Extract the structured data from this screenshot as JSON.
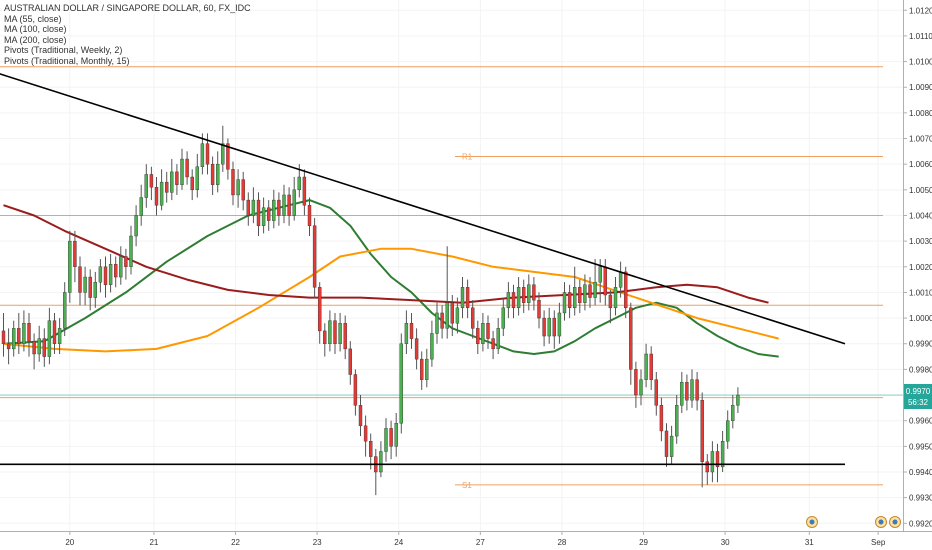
{
  "legend": {
    "title": "AUSTRALIAN DOLLAR / SINGAPORE DOLLAR, 60, FX_IDC",
    "indicators": [
      "MA (55, close)",
      "MA (100, close)",
      "MA (200, close)",
      "Pivots (Traditional, Weekly, 2)",
      "Pivots (Traditional, Monthly, 15)"
    ]
  },
  "price_tag": {
    "price": "0.9970",
    "countdown": "56:32"
  },
  "pivot_labels": {
    "r1": "R1",
    "s1": "S1"
  },
  "colors": {
    "up": "#4caf50",
    "down": "#e53935",
    "ma55": "#2e7d32",
    "ma100": "#ff9800",
    "ma200": "#9b1c1c",
    "pivot": "#f0a060",
    "trend": "#000000",
    "price_tag": "#26a69a"
  },
  "chart_data": {
    "type": "candlestick",
    "title": "AUSTRALIAN DOLLAR / SINGAPORE DOLLAR, 60, FX_IDC",
    "x_tick_labels": [
      "20",
      "21",
      "22",
      "23",
      "24",
      "27",
      "28",
      "29",
      "30",
      "31",
      "Sep"
    ],
    "y_tick_labels": [
      "1.0120",
      "1.0110",
      "1.0100",
      "1.0090",
      "1.0080",
      "1.0070",
      "1.0060",
      "1.0050",
      "1.0040",
      "1.0030",
      "1.0020",
      "1.0010",
      "1.0000",
      "0.9990",
      "0.9980",
      "0.9970",
      "0.9960",
      "0.9950",
      "0.9940",
      "0.9930",
      "0.9920"
    ],
    "ylim": [
      0.9917,
      1.0124
    ],
    "current_price": 0.997,
    "candles": [
      [
        0.9995,
        0.999,
        1.0002,
        0.9985
      ],
      [
        0.999,
        0.9988,
        0.9996,
        0.9982
      ],
      [
        0.9988,
        0.9996,
        0.9999,
        0.9985
      ],
      [
        0.9996,
        0.999,
        1.0002,
        0.9986
      ],
      [
        0.999,
        0.9998,
        1.0003,
        0.9987
      ],
      [
        0.9998,
        0.9991,
        1.0002,
        0.9985
      ],
      [
        0.9991,
        0.9986,
        0.9994,
        0.998
      ],
      [
        0.9986,
        0.9992,
        0.9997,
        0.9983
      ],
      [
        0.9992,
        0.9985,
        0.9996,
        0.9981
      ],
      [
        0.9985,
        0.9999,
        1.0004,
        0.9982
      ],
      [
        0.9999,
        0.999,
        1.0002,
        0.9986
      ],
      [
        0.999,
        0.9996,
        1.0,
        0.9986
      ],
      [
        0.9996,
        1.001,
        1.0014,
        0.9993
      ],
      [
        1.001,
        1.003,
        1.0034,
        1.0006
      ],
      [
        1.003,
        1.002,
        1.0034,
        1.0014
      ],
      [
        1.002,
        1.001,
        1.0024,
        1.0005
      ],
      [
        1.001,
        1.0016,
        1.002,
        1.0005
      ],
      [
        1.0016,
        1.0008,
        1.0019,
        1.0003
      ],
      [
        1.0008,
        1.0014,
        1.0018,
        1.0004
      ],
      [
        1.0014,
        1.002,
        1.0023,
        1.001
      ],
      [
        1.002,
        1.0013,
        1.0024,
        1.0008
      ],
      [
        1.0013,
        1.0021,
        1.0025,
        1.001
      ],
      [
        1.0021,
        1.0016,
        1.0024,
        1.0012
      ],
      [
        1.0016,
        1.0024,
        1.0028,
        1.0013
      ],
      [
        1.0024,
        1.002,
        1.0027,
        1.0015
      ],
      [
        1.002,
        1.0032,
        1.0036,
        1.0017
      ],
      [
        1.0032,
        1.004,
        1.0044,
        1.0028
      ],
      [
        1.004,
        1.0047,
        1.0052,
        1.0036
      ],
      [
        1.0047,
        1.0056,
        1.006,
        1.0043
      ],
      [
        1.0056,
        1.0051,
        1.0059,
        1.0046
      ],
      [
        1.0051,
        1.0044,
        1.0055,
        1.004
      ],
      [
        1.0044,
        1.0053,
        1.0058,
        1.0042
      ],
      [
        1.0053,
        1.0049,
        1.0057,
        1.0045
      ],
      [
        1.0049,
        1.0057,
        1.0062,
        1.0046
      ],
      [
        1.0057,
        1.0052,
        1.006,
        1.0048
      ],
      [
        1.0052,
        1.0062,
        1.0066,
        1.005
      ],
      [
        1.0062,
        1.0055,
        1.0065,
        1.0052
      ],
      [
        1.0055,
        1.005,
        1.0058,
        1.0046
      ],
      [
        1.005,
        1.0059,
        1.0064,
        1.0047
      ],
      [
        1.0059,
        1.0068,
        1.0072,
        1.0056
      ],
      [
        1.0068,
        1.006,
        1.0072,
        1.0056
      ],
      [
        1.006,
        1.0052,
        1.0063,
        1.0048
      ],
      [
        1.0052,
        1.006,
        1.0065,
        1.0049
      ],
      [
        1.006,
        1.0068,
        1.0075,
        1.0057
      ],
      [
        1.0068,
        1.0058,
        1.007,
        1.0054
      ],
      [
        1.0058,
        1.0048,
        1.0061,
        1.0044
      ],
      [
        1.0048,
        1.0054,
        1.0058,
        1.0043
      ],
      [
        1.0054,
        1.0046,
        1.0057,
        1.0042
      ],
      [
        1.0046,
        1.004,
        1.0049,
        1.0036
      ],
      [
        1.004,
        1.0046,
        1.0051,
        1.0037
      ],
      [
        1.0046,
        1.0036,
        1.0049,
        1.0032
      ],
      [
        1.0036,
        1.0043,
        1.0047,
        1.0033
      ],
      [
        1.0043,
        1.0038,
        1.0046,
        1.0034
      ],
      [
        1.0038,
        1.0046,
        1.005,
        1.0035
      ],
      [
        1.0046,
        1.004,
        1.0049,
        1.0036
      ],
      [
        1.004,
        1.0048,
        1.0052,
        1.0037
      ],
      [
        1.0048,
        1.004,
        1.0051,
        1.0036
      ],
      [
        1.004,
        1.005,
        1.0055,
        1.0038
      ],
      [
        1.005,
        1.0055,
        1.006,
        1.0047
      ],
      [
        1.0055,
        1.0044,
        1.0058,
        1.004
      ],
      [
        1.0044,
        1.0036,
        1.0047,
        1.0032
      ],
      [
        1.0036,
        1.0012,
        1.0039,
        1.0008
      ],
      [
        1.0012,
        0.9995,
        1.0014,
        0.999
      ],
      [
        0.9995,
        0.999,
        0.9998,
        0.9985
      ],
      [
        0.999,
        0.9999,
        1.0003,
        0.9987
      ],
      [
        0.9999,
        0.999,
        1.0002,
        0.9986
      ],
      [
        0.999,
        0.9998,
        1.0002,
        0.9987
      ],
      [
        0.9998,
        0.9988,
        1.0001,
        0.9984
      ],
      [
        0.9988,
        0.9978,
        0.9991,
        0.9974
      ],
      [
        0.9978,
        0.9966,
        0.998,
        0.9962
      ],
      [
        0.9966,
        0.9958,
        0.997,
        0.9954
      ],
      [
        0.9958,
        0.9952,
        0.9962,
        0.9946
      ],
      [
        0.9952,
        0.9946,
        0.9955,
        0.9941
      ],
      [
        0.9946,
        0.994,
        0.9949,
        0.9931
      ],
      [
        0.994,
        0.9948,
        0.9952,
        0.9938
      ],
      [
        0.9948,
        0.9957,
        0.9961,
        0.9944
      ],
      [
        0.9957,
        0.995,
        0.996,
        0.9945
      ],
      [
        0.995,
        0.9959,
        0.9963,
        0.9946
      ],
      [
        0.9959,
        0.999,
        0.9994,
        0.9955
      ],
      [
        0.999,
        0.9998,
        1.0003,
        0.9986
      ],
      [
        0.9998,
        0.9992,
        1.0002,
        0.9988
      ],
      [
        0.9992,
        0.9984,
        0.9996,
        0.998
      ],
      [
        0.9984,
        0.9976,
        0.9987,
        0.9972
      ],
      [
        0.9976,
        0.9984,
        0.9988,
        0.9973
      ],
      [
        0.9984,
        0.9994,
        0.9999,
        0.9981
      ],
      [
        0.9994,
        1.0002,
        1.0006,
        0.999
      ],
      [
        1.0002,
        0.9996,
        1.0005,
        0.9992
      ],
      [
        0.9996,
        1.0006,
        1.0028,
        0.9992
      ],
      [
        1.0006,
        0.9998,
        1.0009,
        0.9993
      ],
      [
        0.9998,
        1.0004,
        1.0008,
        0.9994
      ],
      [
        1.0004,
        1.0012,
        1.0016,
        1.0
      ],
      [
        1.0012,
        1.0004,
        1.0015,
        1.0
      ],
      [
        1.0004,
        0.9996,
        1.0007,
        0.9992
      ],
      [
        0.9996,
        0.999,
        0.9999,
        0.9986
      ],
      [
        0.999,
        0.9998,
        1.0002,
        0.9987
      ],
      [
        0.9998,
        0.9992,
        1.0001,
        0.9988
      ],
      [
        0.9992,
        0.9988,
        0.9995,
        0.9984
      ],
      [
        0.9988,
        0.9996,
        1.0,
        0.9986
      ],
      [
        0.9996,
        1.0004,
        1.0008,
        0.9993
      ],
      [
        1.0004,
        1.001,
        1.0014,
        1.0
      ],
      [
        1.001,
        1.0004,
        1.0013,
        1.0
      ],
      [
        1.0004,
        1.0012,
        1.0016,
        1.0001
      ],
      [
        1.0012,
        1.0006,
        1.0015,
        1.0002
      ],
      [
        1.0006,
        1.0013,
        1.0017,
        1.0003
      ],
      [
        1.0013,
        1.0007,
        1.0016,
        1.0003
      ],
      [
        1.0007,
        1.0,
        1.001,
        0.9996
      ],
      [
        1.0,
        0.9993,
        1.0003,
        0.9989
      ],
      [
        0.9993,
        1.0,
        1.0004,
        0.999
      ],
      [
        1.0,
        0.9993,
        1.0003,
        0.9988
      ],
      [
        0.9993,
        1.0002,
        1.0006,
        0.999
      ],
      [
        1.0002,
        1.001,
        1.0014,
        0.9999
      ],
      [
        1.001,
        1.0004,
        1.0013,
        1.0
      ],
      [
        1.0004,
        1.0012,
        1.002,
        1.0001
      ],
      [
        1.0012,
        1.0006,
        1.0015,
        1.0002
      ],
      [
        1.0006,
        1.0013,
        1.0017,
        1.0003
      ],
      [
        1.0013,
        1.0008,
        1.0016,
        1.0004
      ],
      [
        1.0008,
        1.0014,
        1.0023,
        1.0005
      ],
      [
        1.0014,
        1.002,
        1.0023,
        1.0006
      ],
      [
        1.002,
        1.0009,
        1.0023,
        1.0005
      ],
      [
        1.0009,
        1.0004,
        1.0011,
        0.9998
      ],
      [
        1.0004,
        1.0012,
        1.0016,
        1.0001
      ],
      [
        1.0012,
        1.0018,
        1.0022,
        1.0008
      ],
      [
        1.0018,
        1.0004,
        1.002,
        1.0
      ],
      [
        1.0004,
        0.998,
        1.0006,
        0.9974
      ],
      [
        0.998,
        0.997,
        0.9983,
        0.9965
      ],
      [
        0.997,
        0.9976,
        0.998,
        0.9966
      ],
      [
        0.9976,
        0.9986,
        0.999,
        0.9973
      ],
      [
        0.9986,
        0.9976,
        0.9989,
        0.9972
      ],
      [
        0.9976,
        0.9966,
        0.9979,
        0.9962
      ],
      [
        0.9966,
        0.9956,
        0.9969,
        0.9952
      ],
      [
        0.9956,
        0.9946,
        0.9959,
        0.9942
      ],
      [
        0.9946,
        0.9954,
        0.9958,
        0.9943
      ],
      [
        0.9954,
        0.9966,
        0.997,
        0.9951
      ],
      [
        0.9966,
        0.9975,
        0.9979,
        0.9963
      ],
      [
        0.9975,
        0.9968,
        0.9978,
        0.9964
      ],
      [
        0.9968,
        0.9976,
        0.998,
        0.9965
      ],
      [
        0.9976,
        0.9968,
        0.9979,
        0.9964
      ],
      [
        0.9968,
        0.9944,
        0.9971,
        0.9934
      ],
      [
        0.9944,
        0.994,
        0.9947,
        0.9935
      ],
      [
        0.994,
        0.9948,
        0.9952,
        0.9936
      ],
      [
        0.9948,
        0.9942,
        0.9951,
        0.9936
      ],
      [
        0.9942,
        0.9952,
        0.9956,
        0.994
      ],
      [
        0.9952,
        0.996,
        0.9964,
        0.9949
      ],
      [
        0.996,
        0.9966,
        0.997,
        0.9957
      ],
      [
        0.9966,
        0.997,
        0.9973,
        0.9963
      ]
    ],
    "series": [
      {
        "name": "MA (55, close)",
        "points": [
          [
            0,
            0.999
          ],
          [
            8,
            0.9991
          ],
          [
            16,
            1.0
          ],
          [
            24,
            1.001
          ],
          [
            32,
            1.0022
          ],
          [
            40,
            1.0032
          ],
          [
            48,
            1.004
          ],
          [
            56,
            1.0044
          ],
          [
            60,
            1.0046
          ],
          [
            64,
            1.0043
          ],
          [
            68,
            1.0036
          ],
          [
            72,
            1.0025
          ],
          [
            76,
            1.0016
          ],
          [
            80,
            1.001
          ],
          [
            84,
            1.0002
          ],
          [
            88,
            0.9996
          ],
          [
            92,
            0.9993
          ],
          [
            96,
            0.999
          ],
          [
            100,
            0.9987
          ],
          [
            104,
            0.9986
          ],
          [
            108,
            0.9987
          ],
          [
            112,
            0.9991
          ],
          [
            116,
            0.9996
          ],
          [
            120,
            1.0
          ],
          [
            124,
            1.0004
          ],
          [
            128,
            1.0006
          ],
          [
            132,
            1.0004
          ],
          [
            136,
            0.9998
          ],
          [
            140,
            0.9993
          ],
          [
            144,
            0.9989
          ],
          [
            148,
            0.9986
          ],
          [
            152,
            0.9985
          ]
        ]
      },
      {
        "name": "MA (100, close)",
        "points": [
          [
            0,
            0.999
          ],
          [
            10,
            0.9988
          ],
          [
            20,
            0.9987
          ],
          [
            30,
            0.9988
          ],
          [
            40,
            0.9993
          ],
          [
            50,
            1.0004
          ],
          [
            60,
            1.0016
          ],
          [
            66,
            1.0024
          ],
          [
            74,
            1.0027
          ],
          [
            80,
            1.0027
          ],
          [
            88,
            1.0024
          ],
          [
            96,
            1.002
          ],
          [
            104,
            1.0018
          ],
          [
            112,
            1.0016
          ],
          [
            118,
            1.0012
          ],
          [
            124,
            1.0008
          ],
          [
            130,
            1.0004
          ],
          [
            136,
            1.0
          ],
          [
            144,
            0.9996
          ],
          [
            152,
            0.9992
          ]
        ]
      },
      {
        "name": "MA (200, close)",
        "points": [
          [
            0,
            1.0044
          ],
          [
            6,
            1.004
          ],
          [
            12,
            1.0034
          ],
          [
            20,
            1.0027
          ],
          [
            28,
            1.002
          ],
          [
            36,
            1.0015
          ],
          [
            44,
            1.0011
          ],
          [
            52,
            1.0009
          ],
          [
            60,
            1.0008
          ],
          [
            70,
            1.0008
          ],
          [
            80,
            1.0007
          ],
          [
            90,
            1.0006
          ],
          [
            100,
            1.0008
          ],
          [
            110,
            1.0009
          ],
          [
            120,
            1.001
          ],
          [
            128,
            1.0012
          ],
          [
            134,
            1.0013
          ],
          [
            140,
            1.0012
          ],
          [
            146,
            1.0008
          ],
          [
            150,
            1.0006
          ]
        ]
      }
    ],
    "pivot_levels": [
      {
        "label": "",
        "value": 1.0098
      },
      {
        "label": "R1",
        "value": 1.0063
      },
      {
        "label": "",
        "value": 1.004
      },
      {
        "label": "",
        "value": 1.0005
      },
      {
        "label": "",
        "value": 0.9969
      },
      {
        "label": "S1",
        "value": 0.9935
      }
    ],
    "trendlines": [
      {
        "name": "descending",
        "from": [
          -2,
          1.0096
        ],
        "to": [
          165,
          0.999
        ]
      },
      {
        "name": "horizontal",
        "from": [
          -2,
          0.9943
        ],
        "to": [
          165,
          0.9943
        ]
      }
    ]
  }
}
